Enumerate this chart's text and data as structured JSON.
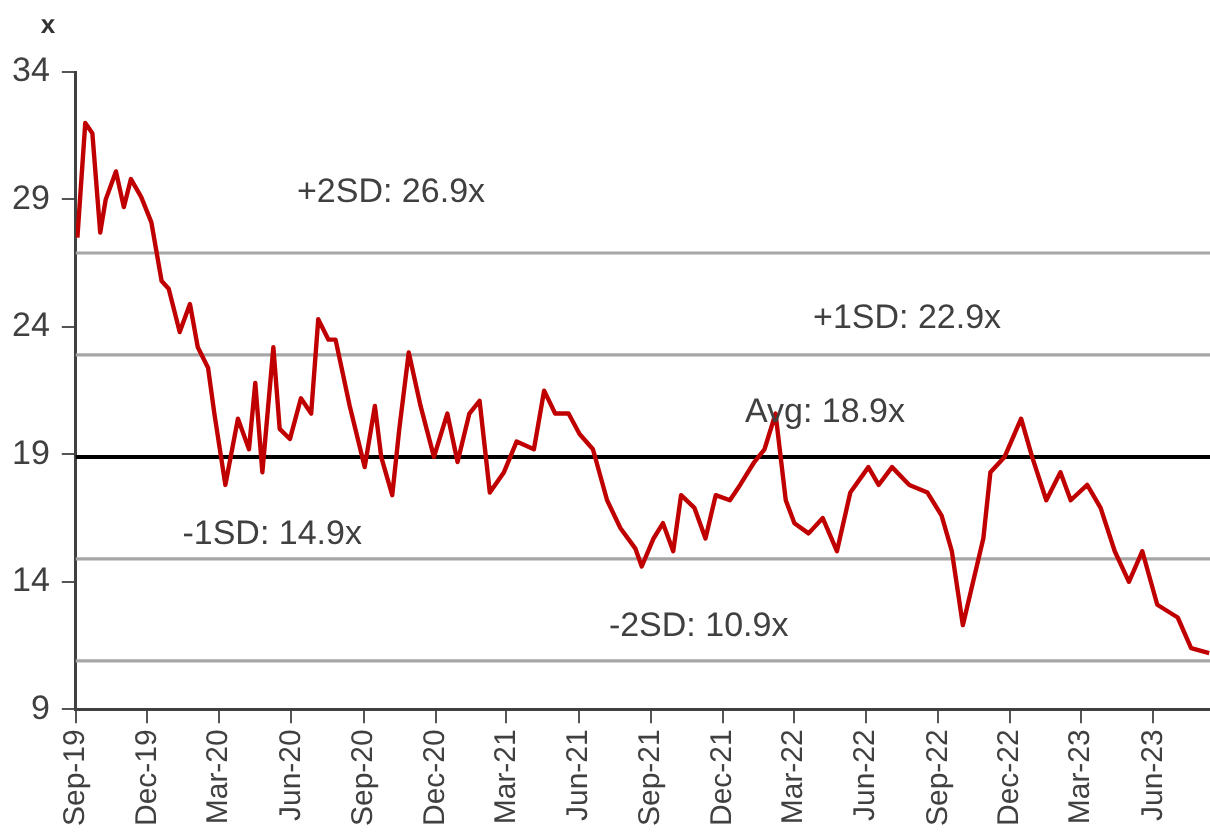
{
  "chart_data": {
    "type": "line",
    "ylabel": "x",
    "xlim": [
      "2019-09-01",
      "2023-08-12"
    ],
    "xticks": [
      {
        "value": "2019-09-01",
        "label": "Sep-19"
      },
      {
        "value": "2019-12-01",
        "label": "Dec-19"
      },
      {
        "value": "2020-03-01",
        "label": "Mar-20"
      },
      {
        "value": "2020-06-01",
        "label": "Jun-20"
      },
      {
        "value": "2020-09-01",
        "label": "Sep-20"
      },
      {
        "value": "2020-12-01",
        "label": "Dec-20"
      },
      {
        "value": "2021-03-01",
        "label": "Mar-21"
      },
      {
        "value": "2021-06-01",
        "label": "Jun-21"
      },
      {
        "value": "2021-09-01",
        "label": "Sep-21"
      },
      {
        "value": "2021-12-01",
        "label": "Dec-21"
      },
      {
        "value": "2022-03-01",
        "label": "Mar-22"
      },
      {
        "value": "2022-06-01",
        "label": "Jun-22"
      },
      {
        "value": "2022-09-01",
        "label": "Sep-22"
      },
      {
        "value": "2022-12-01",
        "label": "Dec-22"
      },
      {
        "value": "2023-03-01",
        "label": "Mar-23"
      },
      {
        "value": "2023-06-01",
        "label": "Jun-23"
      }
    ],
    "ylim": [
      9,
      34
    ],
    "yticks": [
      9,
      14,
      19,
      24,
      29,
      34
    ],
    "x": [
      "2019-09-03",
      "2019-09-13",
      "2019-09-22",
      "2019-10-02",
      "2019-10-09",
      "2019-10-22",
      "2019-11-01",
      "2019-11-10",
      "2019-11-23",
      "2019-12-06",
      "2019-12-19",
      "2019-12-28",
      "2020-01-11",
      "2020-01-24",
      "2020-02-03",
      "2020-02-16",
      "2020-02-24",
      "2020-03-09",
      "2020-03-25",
      "2020-04-08",
      "2020-04-16",
      "2020-04-25",
      "2020-05-09",
      "2020-05-17",
      "2020-05-30",
      "2020-06-13",
      "2020-06-26",
      "2020-07-05",
      "2020-07-18",
      "2020-07-27",
      "2020-08-14",
      "2020-09-02",
      "2020-09-15",
      "2020-09-23",
      "2020-10-07",
      "2020-10-16",
      "2020-10-28",
      "2020-11-12",
      "2020-11-29",
      "2020-12-16",
      "2020-12-29",
      "2021-01-13",
      "2021-01-26",
      "2021-02-08",
      "2021-02-26",
      "2021-03-14",
      "2021-04-05",
      "2021-04-18",
      "2021-05-02",
      "2021-05-19",
      "2021-06-02",
      "2021-06-19",
      "2021-07-07",
      "2021-07-24",
      "2021-08-12",
      "2021-08-20",
      "2021-09-04",
      "2021-09-16",
      "2021-09-29",
      "2021-10-09",
      "2021-10-26",
      "2021-11-09",
      "2021-11-22",
      "2021-12-10",
      "2021-12-23",
      "2022-01-10",
      "2022-01-23",
      "2022-02-06",
      "2022-02-19",
      "2022-03-02",
      "2022-03-20",
      "2022-04-07",
      "2022-04-25",
      "2022-05-12",
      "2022-06-04",
      "2022-06-17",
      "2022-07-04",
      "2022-07-26",
      "2022-08-18",
      "2022-09-05",
      "2022-09-18",
      "2022-10-02",
      "2022-10-15",
      "2022-10-28",
      "2022-11-06",
      "2022-11-24",
      "2022-12-15",
      "2022-12-29",
      "2023-01-16",
      "2023-02-03",
      "2023-02-16",
      "2023-03-09",
      "2023-03-26",
      "2023-04-13",
      "2023-05-01",
      "2023-05-18",
      "2023-06-06",
      "2023-07-02",
      "2023-07-19",
      "2023-08-11"
    ],
    "series": [
      {
        "color": "#c00000",
        "values": [
          27.5,
          32.0,
          31.6,
          27.7,
          29.0,
          30.1,
          28.7,
          29.8,
          29.1,
          28.1,
          25.8,
          25.5,
          23.8,
          24.9,
          23.2,
          22.4,
          20.6,
          17.8,
          20.4,
          19.2,
          21.8,
          18.3,
          23.2,
          20.0,
          19.6,
          21.2,
          20.6,
          24.3,
          23.5,
          23.5,
          20.9,
          18.5,
          20.9,
          18.9,
          17.4,
          20.0,
          23.0,
          20.9,
          18.9,
          20.6,
          18.7,
          20.6,
          21.1,
          17.5,
          18.3,
          19.5,
          19.2,
          21.5,
          20.6,
          20.6,
          19.8,
          19.2,
          17.2,
          16.1,
          15.3,
          14.6,
          15.7,
          16.3,
          15.2,
          17.4,
          16.9,
          15.7,
          17.4,
          17.2,
          17.8,
          18.7,
          19.2,
          20.6,
          17.2,
          16.3,
          15.9,
          16.5,
          15.2,
          17.5,
          18.5,
          17.8,
          18.5,
          17.8,
          17.5,
          16.6,
          15.2,
          12.3,
          14.0,
          15.7,
          18.3,
          18.9,
          20.4,
          18.9,
          17.2,
          18.3,
          17.2,
          17.8,
          16.9,
          15.2,
          14.0,
          15.2,
          13.1,
          12.6,
          11.4,
          11.2
        ]
      }
    ],
    "ref_lines": [
      {
        "axis": "y",
        "value": 26.9,
        "label": "+2SD: 26.9x",
        "color": "#a6a6a6"
      },
      {
        "axis": "y",
        "value": 22.9,
        "label": "+1SD: 22.9x",
        "color": "#a6a6a6"
      },
      {
        "axis": "y",
        "value": 18.9,
        "label": "Avg: 18.9x",
        "color": "#000000"
      },
      {
        "axis": "y",
        "value": 14.9,
        "label": "-1SD: 14.9x",
        "color": "#a6a6a6"
      },
      {
        "axis": "y",
        "value": 10.9,
        "label": "-2SD: 10.9x",
        "color": "#a6a6a6"
      }
    ],
    "marker": "none",
    "line_style": "solid"
  }
}
